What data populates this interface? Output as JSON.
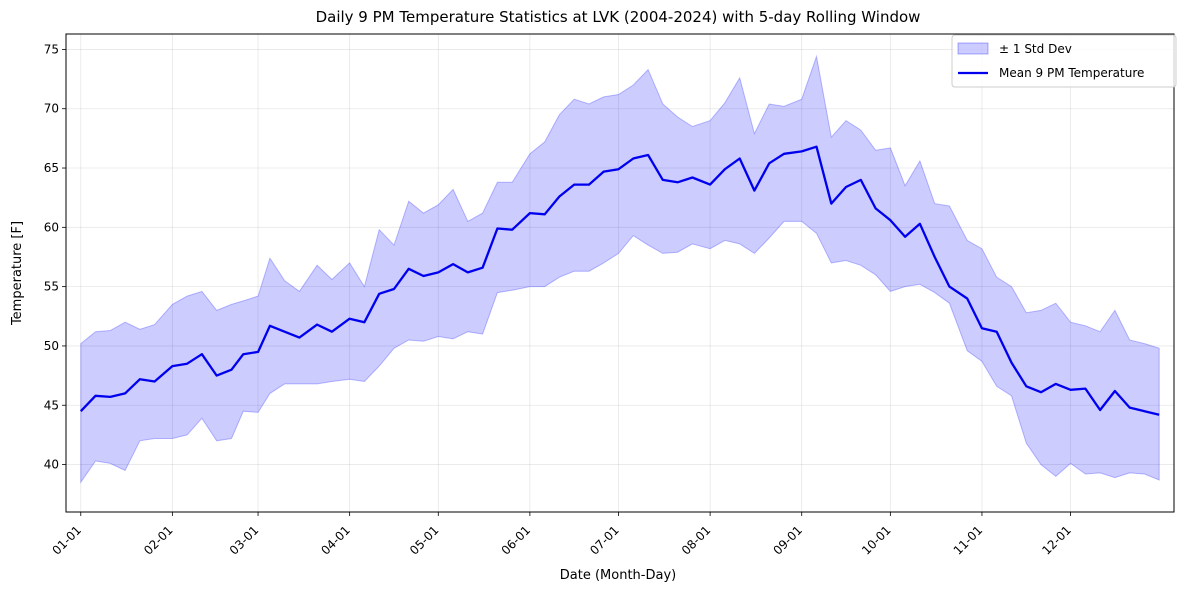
{
  "chart_data": {
    "type": "line",
    "title": "Daily 9 PM Temperature Statistics at LVK (2004-2024) with 5-day Rolling Window",
    "xlabel": "Date (Month-Day)",
    "ylabel": "Temperature [F]",
    "xlim": [
      -5,
      370
    ],
    "ylim": [
      36,
      76.3
    ],
    "x_ticks": [
      {
        "day": 0,
        "label": "01-01"
      },
      {
        "day": 31,
        "label": "02-01"
      },
      {
        "day": 60,
        "label": "03-01"
      },
      {
        "day": 91,
        "label": "04-01"
      },
      {
        "day": 121,
        "label": "05-01"
      },
      {
        "day": 152,
        "label": "06-01"
      },
      {
        "day": 182,
        "label": "07-01"
      },
      {
        "day": 213,
        "label": "08-01"
      },
      {
        "day": 244,
        "label": "09-01"
      },
      {
        "day": 274,
        "label": "10-01"
      },
      {
        "day": 305,
        "label": "11-01"
      },
      {
        "day": 335,
        "label": "12-01"
      }
    ],
    "y_ticks": [
      40,
      45,
      50,
      55,
      60,
      65,
      70,
      75
    ],
    "grid": true,
    "legend_position": "top-right",
    "series": [
      {
        "name": "Mean 9 PM Temperature",
        "color": "#0000ee",
        "x": [
          0,
          5,
          10,
          15,
          20,
          25,
          31,
          36,
          41,
          46,
          51,
          55,
          60,
          64,
          69,
          74,
          80,
          85,
          91,
          96,
          101,
          106,
          111,
          116,
          121,
          126,
          131,
          136,
          141,
          146,
          152,
          157,
          162,
          167,
          172,
          177,
          182,
          187,
          192,
          197,
          202,
          207,
          213,
          218,
          223,
          228,
          233,
          238,
          244,
          249,
          254,
          259,
          264,
          269,
          274,
          279,
          284,
          289,
          294,
          300,
          305,
          310,
          315,
          320,
          325,
          330,
          335,
          340,
          345,
          350,
          355,
          360,
          365
        ],
        "y": [
          44.5,
          45.8,
          45.7,
          46.0,
          47.2,
          47.0,
          48.3,
          48.5,
          49.3,
          47.5,
          48.0,
          49.3,
          49.5,
          51.7,
          51.2,
          50.7,
          51.8,
          51.2,
          52.3,
          52.0,
          54.4,
          54.8,
          56.5,
          55.9,
          56.2,
          56.9,
          56.2,
          56.6,
          59.9,
          59.8,
          61.2,
          61.1,
          62.6,
          63.6,
          63.6,
          64.7,
          64.9,
          65.8,
          66.1,
          64.0,
          63.8,
          64.2,
          63.6,
          64.9,
          65.8,
          63.1,
          65.4,
          66.2,
          66.4,
          66.8,
          62.0,
          63.4,
          64.0,
          61.6,
          60.6,
          59.2,
          60.3,
          57.5,
          55.0,
          54.0,
          51.5,
          51.2,
          48.6,
          46.6,
          46.1,
          46.8,
          46.3,
          46.4,
          44.6,
          46.2,
          44.8,
          44.5,
          44.2
        ]
      },
      {
        "name": "± 1 Std Dev",
        "color": "#0000ff",
        "opacity": 0.2,
        "x": [
          0,
          5,
          10,
          15,
          20,
          25,
          31,
          36,
          41,
          46,
          51,
          55,
          60,
          64,
          69,
          74,
          80,
          85,
          91,
          96,
          101,
          106,
          111,
          116,
          121,
          126,
          131,
          136,
          141,
          146,
          152,
          157,
          162,
          167,
          172,
          177,
          182,
          187,
          192,
          197,
          202,
          207,
          213,
          218,
          223,
          228,
          233,
          238,
          244,
          249,
          254,
          259,
          264,
          269,
          274,
          279,
          284,
          289,
          294,
          300,
          305,
          310,
          315,
          320,
          325,
          330,
          335,
          340,
          345,
          350,
          355,
          360,
          365
        ],
        "upper": [
          50.2,
          51.2,
          51.3,
          52.0,
          51.4,
          51.8,
          53.5,
          54.2,
          54.6,
          53.0,
          53.5,
          53.8,
          54.2,
          57.4,
          55.5,
          54.6,
          56.8,
          55.6,
          57.0,
          55.0,
          59.8,
          58.5,
          62.2,
          61.2,
          61.9,
          63.2,
          60.5,
          61.2,
          63.8,
          63.8,
          66.2,
          67.2,
          69.5,
          70.8,
          70.4,
          71.0,
          71.2,
          72.0,
          73.3,
          70.4,
          69.3,
          68.5,
          69.0,
          70.5,
          72.6,
          67.9,
          70.4,
          70.2,
          70.8,
          74.4,
          67.6,
          69.0,
          68.2,
          66.5,
          66.7,
          63.5,
          65.6,
          62.0,
          61.8,
          58.9,
          58.2,
          55.8,
          55.0,
          52.8,
          53.0,
          53.6,
          52.0,
          51.7,
          51.2,
          53.0,
          50.5,
          50.2,
          49.8
        ],
        "lower": [
          38.5,
          40.3,
          40.1,
          39.5,
          42.0,
          42.2,
          42.2,
          42.5,
          43.9,
          42.0,
          42.2,
          44.5,
          44.4,
          46.0,
          46.8,
          46.8,
          46.8,
          47.0,
          47.2,
          47.0,
          48.3,
          49.8,
          50.5,
          50.4,
          50.8,
          50.6,
          51.2,
          51.0,
          54.5,
          54.7,
          55.0,
          55.0,
          55.8,
          56.3,
          56.3,
          57.0,
          57.8,
          59.3,
          58.5,
          57.8,
          57.9,
          58.6,
          58.2,
          58.9,
          58.6,
          57.8,
          59.1,
          60.5,
          60.5,
          59.5,
          57.0,
          57.2,
          56.8,
          56.0,
          54.6,
          55.0,
          55.2,
          54.5,
          53.6,
          49.6,
          48.7,
          46.6,
          45.8,
          41.8,
          40.0,
          39.0,
          40.1,
          39.2,
          39.3,
          38.9,
          39.3,
          39.2,
          38.7
        ]
      }
    ],
    "legend": [
      {
        "label": "± 1 Std Dev",
        "kind": "band"
      },
      {
        "label": "Mean 9 PM Temperature",
        "kind": "line"
      }
    ]
  }
}
